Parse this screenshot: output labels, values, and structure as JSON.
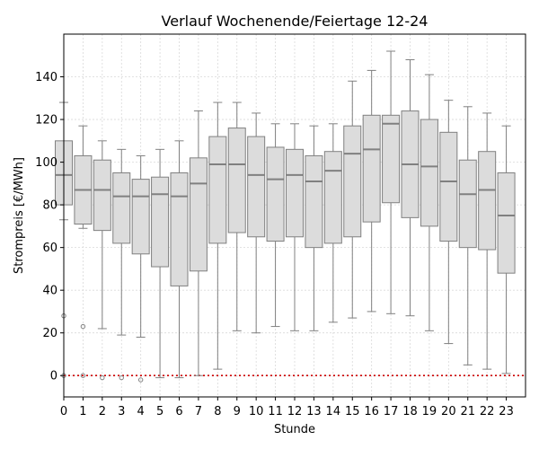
{
  "chart_data": {
    "type": "box",
    "title": "Verlauf Wochenende/Feiertage 12-24",
    "xlabel": "Stunde",
    "ylabel": "Strompreis [€/MWh]",
    "ylim": [
      -10,
      160
    ],
    "yticks": [
      0,
      20,
      40,
      60,
      80,
      100,
      120,
      140
    ],
    "grid": true,
    "reference_line": {
      "y": 0,
      "color": "#cc0000",
      "style": "dotted"
    },
    "colors": {
      "box_fill": "#dcdcdc",
      "box_edge": "#808080",
      "median": "#808080"
    },
    "categories": [
      "0",
      "1",
      "2",
      "3",
      "4",
      "5",
      "6",
      "7",
      "8",
      "9",
      "10",
      "11",
      "12",
      "13",
      "14",
      "15",
      "16",
      "17",
      "18",
      "19",
      "20",
      "21",
      "22",
      "23"
    ],
    "boxes": [
      {
        "x": "0",
        "whislo": 73,
        "q1": 80,
        "median": 94,
        "q3": 110,
        "whishi": 128,
        "fliers": [
          28,
          0
        ]
      },
      {
        "x": "1",
        "whislo": 69,
        "q1": 71,
        "median": 87,
        "q3": 103,
        "whishi": 117,
        "fliers": [
          23,
          0
        ]
      },
      {
        "x": "2",
        "whislo": 22,
        "q1": 68,
        "median": 87,
        "q3": 101,
        "whishi": 110,
        "fliers": [
          -1
        ]
      },
      {
        "x": "3",
        "whislo": 19,
        "q1": 62,
        "median": 84,
        "q3": 95,
        "whishi": 106,
        "fliers": [
          -1
        ]
      },
      {
        "x": "4",
        "whislo": 18,
        "q1": 57,
        "median": 84,
        "q3": 92,
        "whishi": 103,
        "fliers": [
          -2
        ]
      },
      {
        "x": "5",
        "whislo": -1,
        "q1": 51,
        "median": 85,
        "q3": 93,
        "whishi": 106,
        "fliers": []
      },
      {
        "x": "6",
        "whislo": -1,
        "q1": 42,
        "median": 84,
        "q3": 95,
        "whishi": 110,
        "fliers": []
      },
      {
        "x": "7",
        "whislo": 0,
        "q1": 49,
        "median": 90,
        "q3": 102,
        "whishi": 124,
        "fliers": []
      },
      {
        "x": "8",
        "whislo": 3,
        "q1": 62,
        "median": 99,
        "q3": 112,
        "whishi": 128,
        "fliers": []
      },
      {
        "x": "9",
        "whislo": 21,
        "q1": 67,
        "median": 99,
        "q3": 116,
        "whishi": 128,
        "fliers": []
      },
      {
        "x": "10",
        "whislo": 20,
        "q1": 65,
        "median": 94,
        "q3": 112,
        "whishi": 123,
        "fliers": []
      },
      {
        "x": "11",
        "whislo": 23,
        "q1": 63,
        "median": 92,
        "q3": 107,
        "whishi": 118,
        "fliers": []
      },
      {
        "x": "12",
        "whislo": 21,
        "q1": 65,
        "median": 94,
        "q3": 106,
        "whishi": 118,
        "fliers": []
      },
      {
        "x": "13",
        "whislo": 21,
        "q1": 60,
        "median": 91,
        "q3": 103,
        "whishi": 117,
        "fliers": []
      },
      {
        "x": "14",
        "whislo": 25,
        "q1": 62,
        "median": 96,
        "q3": 105,
        "whishi": 118,
        "fliers": []
      },
      {
        "x": "15",
        "whislo": 27,
        "q1": 65,
        "median": 104,
        "q3": 117,
        "whishi": 138,
        "fliers": []
      },
      {
        "x": "16",
        "whislo": 30,
        "q1": 72,
        "median": 106,
        "q3": 122,
        "whishi": 143,
        "fliers": []
      },
      {
        "x": "17",
        "whislo": 29,
        "q1": 81,
        "median": 118,
        "q3": 122,
        "whishi": 152,
        "fliers": []
      },
      {
        "x": "18",
        "whislo": 28,
        "q1": 74,
        "median": 99,
        "q3": 124,
        "whishi": 148,
        "fliers": []
      },
      {
        "x": "19",
        "whislo": 21,
        "q1": 70,
        "median": 98,
        "q3": 120,
        "whishi": 141,
        "fliers": []
      },
      {
        "x": "20",
        "whislo": 15,
        "q1": 63,
        "median": 91,
        "q3": 114,
        "whishi": 129,
        "fliers": []
      },
      {
        "x": "21",
        "whislo": 5,
        "q1": 60,
        "median": 85,
        "q3": 101,
        "whishi": 126,
        "fliers": []
      },
      {
        "x": "22",
        "whislo": 3,
        "q1": 59,
        "median": 87,
        "q3": 105,
        "whishi": 123,
        "fliers": []
      },
      {
        "x": "23",
        "whislo": 1,
        "q1": 48,
        "median": 75,
        "q3": 95,
        "whishi": 117,
        "fliers": []
      }
    ]
  }
}
